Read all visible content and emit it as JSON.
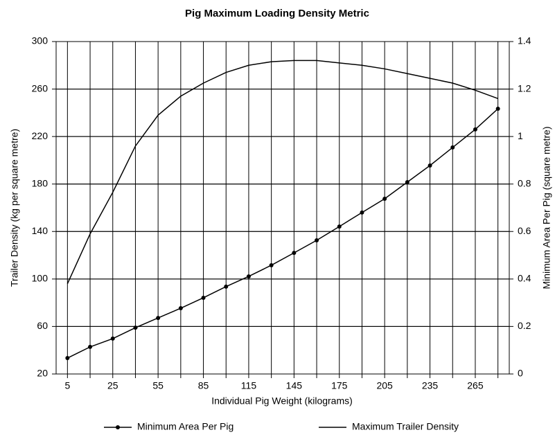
{
  "chart_data": {
    "type": "line",
    "title": "Pig Maximum Loading Density Metric",
    "xlabel": "Individual Pig Weight (kilograms)",
    "ylabel": "Trailer Density (kg per square metre)",
    "y2label": "Minimum Area Per Pig (square metre)",
    "categories": [
      5,
      null,
      25,
      null,
      55,
      null,
      85,
      null,
      115,
      null,
      145,
      null,
      175,
      null,
      205,
      null,
      235,
      null,
      265,
      null
    ],
    "ylim": [
      20,
      300
    ],
    "yticks": [
      20,
      60,
      100,
      140,
      180,
      220,
      260,
      300
    ],
    "y2lim": [
      0,
      1.4
    ],
    "y2ticks": [
      0,
      0.2,
      0.4,
      0.6,
      0.8,
      1,
      1.2,
      1.4
    ],
    "grid": true,
    "legend": "bottom",
    "series": [
      {
        "name": "Minimum Area Per Pig",
        "color": "#000000",
        "axis": "y2",
        "marker": "circle",
        "values": [
          0.067,
          0.114,
          0.149,
          0.195,
          0.236,
          0.277,
          0.321,
          0.368,
          0.411,
          0.458,
          0.51,
          0.563,
          0.621,
          0.68,
          0.738,
          0.808,
          0.878,
          0.954,
          1.03,
          1.117
        ]
      },
      {
        "name": "Maximum Trailer Density",
        "color": "#000000",
        "values": [
          96,
          138,
          173,
          212,
          238,
          254,
          265,
          274,
          280,
          283,
          284,
          284,
          282,
          280,
          277,
          273,
          269,
          265,
          259,
          252
        ]
      }
    ]
  }
}
